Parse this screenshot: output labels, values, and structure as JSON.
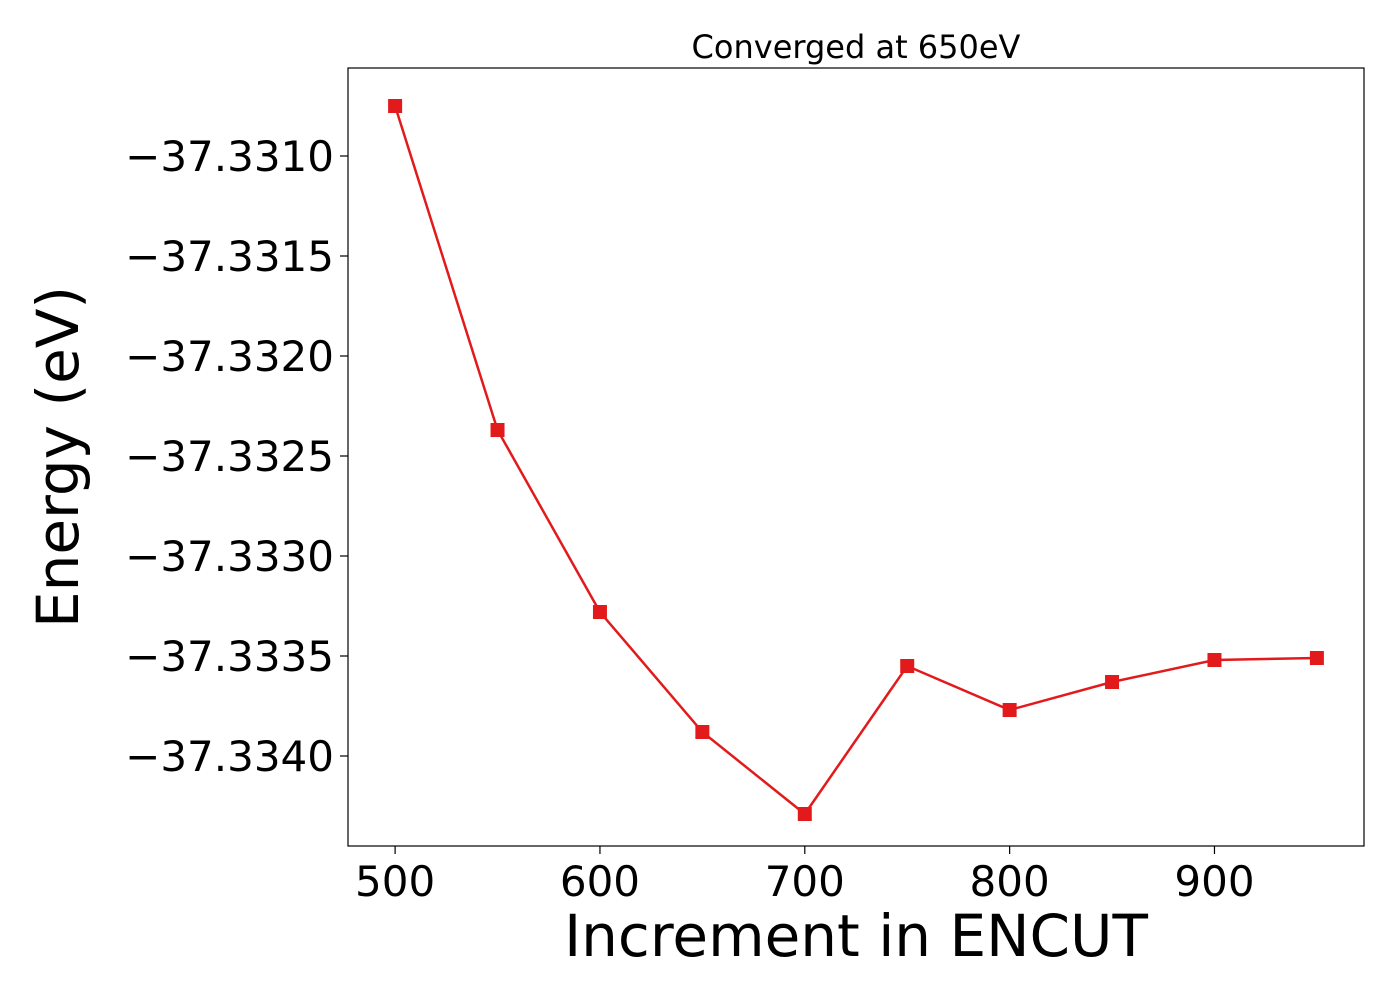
{
  "chart_data": {
    "type": "line",
    "title": "Converged at 650eV",
    "xlabel": "Increment in ENCUT",
    "ylabel": "Energy (eV)",
    "xlim": [
      477,
      973
    ],
    "ylim": [
      -37.33445,
      -37.33056
    ],
    "x_ticks": [
      500,
      600,
      700,
      800,
      900
    ],
    "x_tick_labels": [
      "500",
      "600",
      "700",
      "800",
      "900"
    ],
    "y_ticks": [
      -37.331,
      -37.3315,
      -37.332,
      -37.3325,
      -37.333,
      -37.3335,
      -37.334
    ],
    "y_tick_labels": [
      "−37.3310",
      "−37.3315",
      "−37.3320",
      "−37.3325",
      "−37.3330",
      "−37.3335",
      "−37.3340"
    ],
    "grid": false,
    "series": [
      {
        "color": "#e31a1c",
        "marker": "square",
        "x": [
          500,
          550,
          600,
          650,
          700,
          750,
          800,
          850,
          900,
          950
        ],
        "y": [
          -37.33075,
          -37.33237,
          -37.33328,
          -37.33388,
          -37.33429,
          -37.33355,
          -37.33377,
          -37.33363,
          -37.33352,
          -37.33351
        ]
      }
    ]
  }
}
